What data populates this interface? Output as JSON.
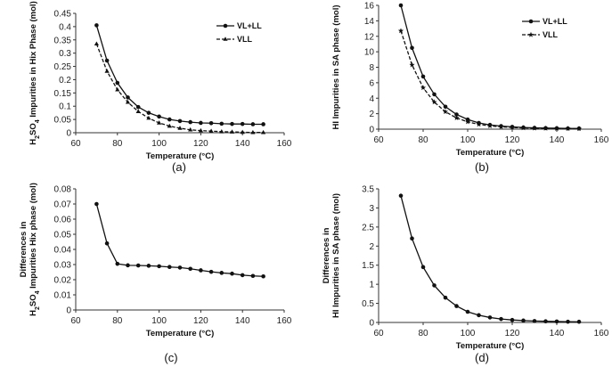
{
  "chart_data": [
    {
      "type": "line",
      "panel_label": "(a)",
      "xlabel": "Temperature (°C)",
      "ylabel_parts": [
        "H",
        "2",
        "SO",
        "4",
        " Impurities in Hix Phase (mol)"
      ],
      "xlim": [
        60,
        160
      ],
      "ylim": [
        0,
        0.45
      ],
      "xticks": [
        60,
        80,
        100,
        120,
        140,
        160
      ],
      "yticks": [
        0,
        0.05,
        0.1,
        0.15,
        0.2,
        0.25,
        0.3,
        0.35,
        0.4,
        0.45
      ],
      "legend_position": "top-right",
      "x": [
        70,
        75,
        80,
        85,
        90,
        95,
        100,
        105,
        110,
        115,
        120,
        125,
        130,
        135,
        140,
        145,
        150
      ],
      "series": [
        {
          "name": "VL+LL",
          "style": "solid",
          "marker": "circle",
          "values": [
            0.405,
            0.272,
            0.188,
            0.133,
            0.097,
            0.075,
            0.061,
            0.05,
            0.044,
            0.04,
            0.037,
            0.036,
            0.034,
            0.033,
            0.033,
            0.032,
            0.032
          ]
        },
        {
          "name": "VLL",
          "style": "dashed",
          "marker": "triangle",
          "values": [
            0.335,
            0.232,
            0.162,
            0.115,
            0.08,
            0.055,
            0.037,
            0.025,
            0.017,
            0.011,
            0.008,
            0.006,
            0.004,
            0.003,
            0.002,
            0.001,
            0.001
          ]
        }
      ]
    },
    {
      "type": "line",
      "panel_label": "(b)",
      "xlabel": "Temperature (°C)",
      "ylabel_parts": [
        "HI Impurities in SA phase (mol)"
      ],
      "xlim": [
        60,
        160
      ],
      "ylim": [
        0,
        16
      ],
      "xticks": [
        60,
        80,
        100,
        120,
        140,
        160
      ],
      "yticks": [
        0,
        2,
        4,
        6,
        8,
        10,
        12,
        14,
        16
      ],
      "legend_position": "top-right",
      "x": [
        70,
        75,
        80,
        85,
        90,
        95,
        100,
        105,
        110,
        115,
        120,
        125,
        130,
        135,
        140,
        145,
        150
      ],
      "series": [
        {
          "name": "VL+LL",
          "style": "solid",
          "marker": "circle",
          "values": [
            16.0,
            10.5,
            6.8,
            4.5,
            2.9,
            1.9,
            1.25,
            0.8,
            0.55,
            0.4,
            0.3,
            0.22,
            0.17,
            0.14,
            0.12,
            0.1,
            0.09
          ]
        },
        {
          "name": "VLL",
          "style": "dashed",
          "marker": "star",
          "values": [
            12.7,
            8.3,
            5.35,
            3.5,
            2.25,
            1.45,
            0.95,
            0.62,
            0.42,
            0.3,
            0.22,
            0.16,
            0.12,
            0.1,
            0.08,
            0.07,
            0.06
          ]
        }
      ]
    },
    {
      "type": "line",
      "panel_label": "(c)",
      "xlabel": "Temperature (°C)",
      "ylabel_line1": "Differences in",
      "ylabel_parts": [
        "H",
        "2",
        "SO",
        "4",
        " Impurities Hix phase (mol)"
      ],
      "xlim": [
        60,
        160
      ],
      "ylim": [
        0,
        0.08
      ],
      "xticks": [
        60,
        80,
        100,
        120,
        140,
        160
      ],
      "yticks": [
        0,
        0.01,
        0.02,
        0.03,
        0.04,
        0.05,
        0.06,
        0.07,
        0.08
      ],
      "x": [
        70,
        75,
        80,
        85,
        90,
        95,
        100,
        105,
        110,
        115,
        120,
        125,
        130,
        135,
        140,
        145,
        150
      ],
      "series": [
        {
          "style": "solid",
          "marker": "circle",
          "values": [
            0.07,
            0.044,
            0.0305,
            0.0295,
            0.0294,
            0.0292,
            0.0289,
            0.0284,
            0.028,
            0.0272,
            0.0262,
            0.0252,
            0.0245,
            0.024,
            0.023,
            0.0225,
            0.0222
          ]
        }
      ]
    },
    {
      "type": "line",
      "panel_label": "(d)",
      "xlabel": "Temperature (°C)",
      "ylabel_line1": "Differences in",
      "ylabel_parts": [
        "HI Impurities in SA phase (mol)"
      ],
      "xlim": [
        60,
        160
      ],
      "ylim": [
        0,
        3.5
      ],
      "xticks": [
        60,
        80,
        100,
        120,
        140,
        160
      ],
      "yticks": [
        0,
        0.5,
        1,
        1.5,
        2,
        2.5,
        3,
        3.5
      ],
      "x": [
        70,
        75,
        80,
        85,
        90,
        95,
        100,
        105,
        110,
        115,
        120,
        125,
        130,
        135,
        140,
        145,
        150
      ],
      "series": [
        {
          "style": "solid",
          "marker": "circle",
          "values": [
            3.32,
            2.2,
            1.45,
            0.97,
            0.65,
            0.43,
            0.28,
            0.19,
            0.13,
            0.09,
            0.065,
            0.05,
            0.038,
            0.03,
            0.025,
            0.02,
            0.018
          ]
        }
      ]
    }
  ]
}
